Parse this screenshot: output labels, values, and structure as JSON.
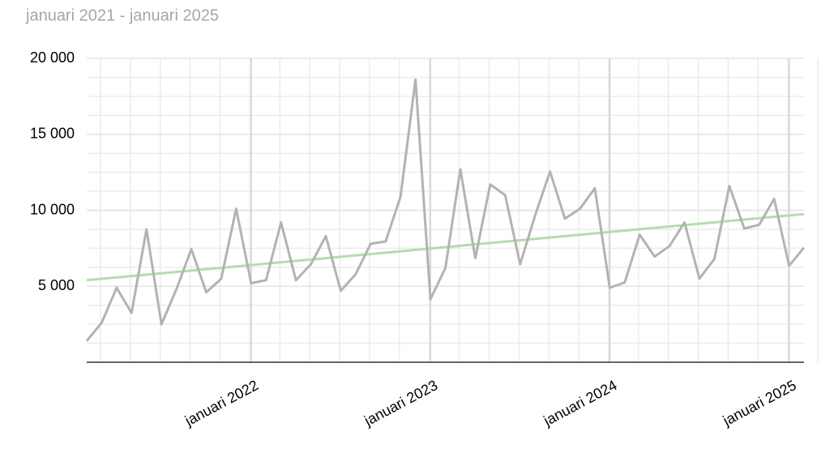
{
  "chart_data": {
    "type": "line",
    "title": "januari 2021 - januari 2025",
    "x": [
      "2021-02",
      "2021-03",
      "2021-04",
      "2021-05",
      "2021-06",
      "2021-07",
      "2021-08",
      "2021-09",
      "2021-10",
      "2021-11",
      "2021-12",
      "2022-01",
      "2022-02",
      "2022-03",
      "2022-04",
      "2022-05",
      "2022-06",
      "2022-07",
      "2022-08",
      "2022-09",
      "2022-10",
      "2022-11",
      "2022-12",
      "2023-01",
      "2023-02",
      "2023-03",
      "2023-04",
      "2023-05",
      "2023-06",
      "2023-07",
      "2023-08",
      "2023-09",
      "2023-10",
      "2023-11",
      "2023-12",
      "2024-01",
      "2024-02",
      "2024-03",
      "2024-04",
      "2024-05",
      "2024-06",
      "2024-07",
      "2024-08",
      "2024-09",
      "2024-10",
      "2024-11",
      "2024-12",
      "2025-01",
      "2025-02"
    ],
    "series": [
      {
        "color": "#b3b3b3",
        "values": [
          1400,
          2600,
          4900,
          3250,
          8750,
          2500,
          4800,
          7450,
          4600,
          5500,
          10100,
          5200,
          5400,
          9200,
          5400,
          6450,
          8300,
          4700,
          5800,
          7800,
          7950,
          10900,
          18600,
          4150,
          6200,
          12700,
          6850,
          11700,
          11000,
          6450,
          9650,
          12550,
          9450,
          10100,
          11450,
          4900,
          5250,
          8400,
          6950,
          7650,
          9200,
          5500,
          6800,
          11600,
          8800,
          9050,
          10750,
          6350,
          7550
        ]
      }
    ],
    "trend": {
      "color": "#b5dcae",
      "x": [
        "2021-02",
        "2025-02"
      ],
      "values": [
        5400,
        9750
      ]
    },
    "xlim": [
      "2021-02",
      "2025-02"
    ],
    "xticks": [
      {
        "value": "2022-01",
        "label": "januari 2022"
      },
      {
        "value": "2023-01",
        "label": "januari 2023"
      },
      {
        "value": "2024-01",
        "label": "januari 2024"
      },
      {
        "value": "2025-01",
        "label": "januari 2025"
      }
    ],
    "ylim": [
      0,
      20000
    ],
    "yticks": [
      {
        "value": 5000,
        "label": "5 000"
      },
      {
        "value": 10000,
        "label": "10 000"
      },
      {
        "value": 15000,
        "label": "15 000"
      },
      {
        "value": 20000,
        "label": "20 000"
      }
    ],
    "grid": true
  }
}
